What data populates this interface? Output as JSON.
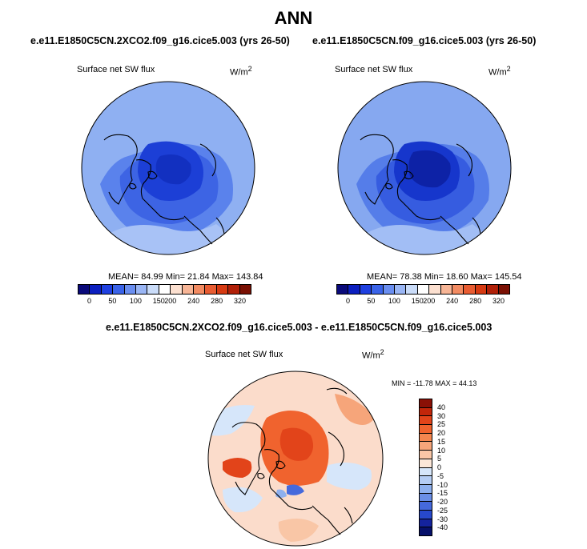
{
  "page": {
    "title": "ANN"
  },
  "panels": [
    {
      "title": "e.e11.E1850C5CN.2XCO2.f09_g16.cice5.003 (yrs 26-50)",
      "variable": "Surface net SW flux",
      "units": "W/m",
      "units_sup": "2",
      "stats": "MEAN=  84.99  Min=  21.84  Max= 143.84"
    },
    {
      "title": "e.e11.E1850C5CN.f09_g16.cice5.003 (yrs 26-50)",
      "variable": "Surface net SW flux",
      "units": "W/m",
      "units_sup": "2",
      "stats": "MEAN=  78.38  Min=  18.60  Max= 145.54"
    }
  ],
  "diff_panel": {
    "title": "e.e11.E1850C5CN.2XCO2.f09_g16.cice5.003 - e.e11.E1850C5CN.f09_g16.cice5.003",
    "variable": "Surface net SW flux",
    "units": "W/m",
    "units_sup": "2",
    "stats": "MIN = -11.78 MAX =  44.13"
  },
  "colorbar_abs": {
    "ticks": [
      "0",
      "50",
      "100",
      "150",
      "200",
      "240",
      "280",
      "320"
    ],
    "colors": [
      "#0a0a7a",
      "#0c1fbf",
      "#1f40e0",
      "#3a63e8",
      "#6a8ef0",
      "#9ab6f5",
      "#cadcf9",
      "#ffffff",
      "#fce0d0",
      "#f7b596",
      "#f28b62",
      "#e85c32",
      "#d63a12",
      "#b02008",
      "#7a1003"
    ]
  },
  "colorbar_diff": {
    "ticks": [
      "40",
      "30",
      "25",
      "20",
      "15",
      "10",
      "5",
      "0",
      "-5",
      "-10",
      "-15",
      "-20",
      "-25",
      "-30",
      "-40"
    ],
    "colors": [
      "#8a1006",
      "#c2260a",
      "#e2441a",
      "#f0632e",
      "#f4864f",
      "#f6a57a",
      "#f9c6a6",
      "#fce7d8",
      "#d6e6fa",
      "#b5cdf4",
      "#8eb0ee",
      "#6a8ee6",
      "#4569dc",
      "#2748cc",
      "#14239e",
      "#06106a"
    ]
  },
  "colors": {
    "ocean_abs_a": "#8fb0f2",
    "ocean_abs_b": "#86a8f0",
    "diff_ocean": "#fbdccb"
  }
}
